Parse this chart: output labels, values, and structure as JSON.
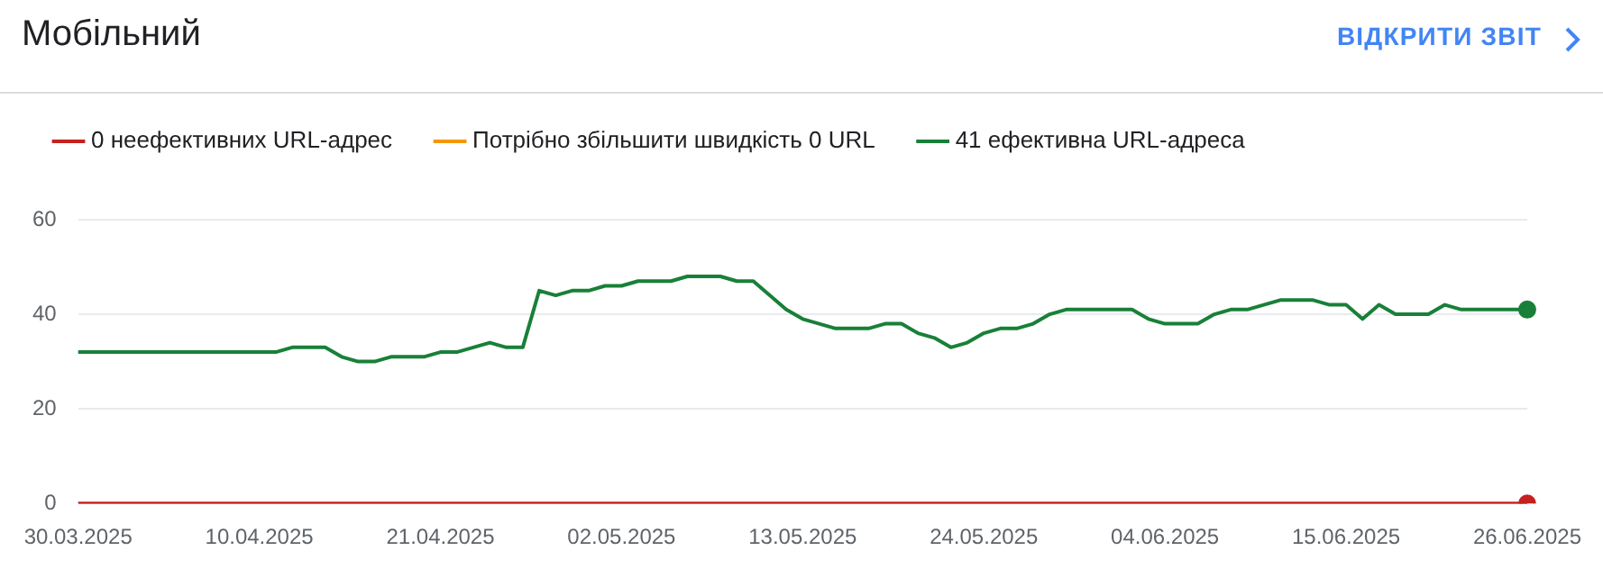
{
  "chart_data": {
    "type": "line",
    "title": "Мобільний",
    "annotations": [
      "ВІДКРИТИ ЗВІТ"
    ],
    "categories": [
      "30.03.2025",
      null,
      null,
      null,
      null,
      null,
      null,
      null,
      null,
      null,
      null,
      "10.04.2025",
      null,
      null,
      null,
      null,
      null,
      null,
      null,
      null,
      null,
      null,
      "21.04.2025",
      null,
      null,
      null,
      null,
      null,
      null,
      null,
      null,
      null,
      null,
      "02.05.2025",
      null,
      null,
      null,
      null,
      null,
      null,
      null,
      null,
      null,
      null,
      "13.05.2025",
      null,
      null,
      null,
      null,
      null,
      null,
      null,
      null,
      null,
      null,
      "24.05.2025",
      null,
      null,
      null,
      null,
      null,
      null,
      null,
      null,
      null,
      null,
      "04.06.2025",
      null,
      null,
      null,
      null,
      null,
      null,
      null,
      null,
      null,
      null,
      "15.06.2025",
      null,
      null,
      null,
      null,
      null,
      null,
      null,
      null,
      null,
      null,
      "26.06.2025"
    ],
    "series": [
      {
        "name": "0 неефективних URL-адрес",
        "color": "#c5221f",
        "values": [
          0,
          0,
          0,
          0,
          0,
          0,
          0,
          0,
          0,
          0,
          0,
          0,
          0,
          0,
          0,
          0,
          0,
          0,
          0,
          0,
          0,
          0,
          0,
          0,
          0,
          0,
          0,
          0,
          0,
          0,
          0,
          0,
          0,
          0,
          0,
          0,
          0,
          0,
          0,
          0,
          0,
          0,
          0,
          0,
          0,
          0,
          0,
          0,
          0,
          0,
          0,
          0,
          0,
          0,
          0,
          0,
          0,
          0,
          0,
          0,
          0,
          0,
          0,
          0,
          0,
          0,
          0,
          0,
          0,
          0,
          0,
          0,
          0,
          0,
          0,
          0,
          0,
          0,
          0,
          0,
          0,
          0,
          0,
          0,
          0,
          0,
          0,
          0,
          0
        ]
      },
      {
        "name": "Потрібно збільшити швидкість 0 URL",
        "color": "#f29900",
        "values": [
          null,
          null,
          null,
          null,
          null,
          null,
          null,
          null,
          null,
          null,
          null,
          null,
          null,
          null,
          null,
          null,
          null,
          null,
          null,
          null,
          null,
          null,
          null,
          null,
          null,
          null,
          null,
          null,
          null,
          null,
          null,
          null,
          null,
          null,
          null,
          null,
          null,
          null,
          null,
          null,
          null,
          null,
          null,
          null,
          null,
          null,
          null,
          null,
          null,
          null,
          null,
          null,
          null,
          null,
          null,
          null,
          null,
          null,
          null,
          null,
          null,
          null,
          null,
          null,
          null,
          null,
          null,
          null,
          null,
          null,
          null,
          null,
          null,
          null,
          null,
          null,
          null,
          null,
          null,
          null,
          null,
          null,
          null,
          null,
          null,
          null,
          null,
          null,
          null
        ]
      },
      {
        "name": "41 ефективна URL-адреса",
        "color": "#188038",
        "values": [
          32,
          32,
          32,
          32,
          32,
          32,
          32,
          32,
          32,
          32,
          32,
          32,
          32,
          33,
          33,
          33,
          31,
          30,
          30,
          31,
          31,
          31,
          32,
          32,
          33,
          34,
          33,
          33,
          45,
          44,
          45,
          45,
          46,
          46,
          47,
          47,
          47,
          48,
          48,
          48,
          47,
          47,
          44,
          41,
          39,
          38,
          37,
          37,
          37,
          38,
          38,
          36,
          35,
          33,
          34,
          36,
          37,
          37,
          38,
          40,
          41,
          41,
          41,
          41,
          41,
          39,
          38,
          38,
          38,
          40,
          41,
          41,
          42,
          43,
          43,
          43,
          42,
          42,
          39,
          42,
          40,
          40,
          40,
          42,
          41,
          41,
          41,
          41,
          41
        ]
      }
    ],
    "ylim": [
      0,
      60
    ],
    "yticks": [
      0,
      20,
      40,
      60
    ],
    "grid": "y",
    "legend": "top left"
  }
}
